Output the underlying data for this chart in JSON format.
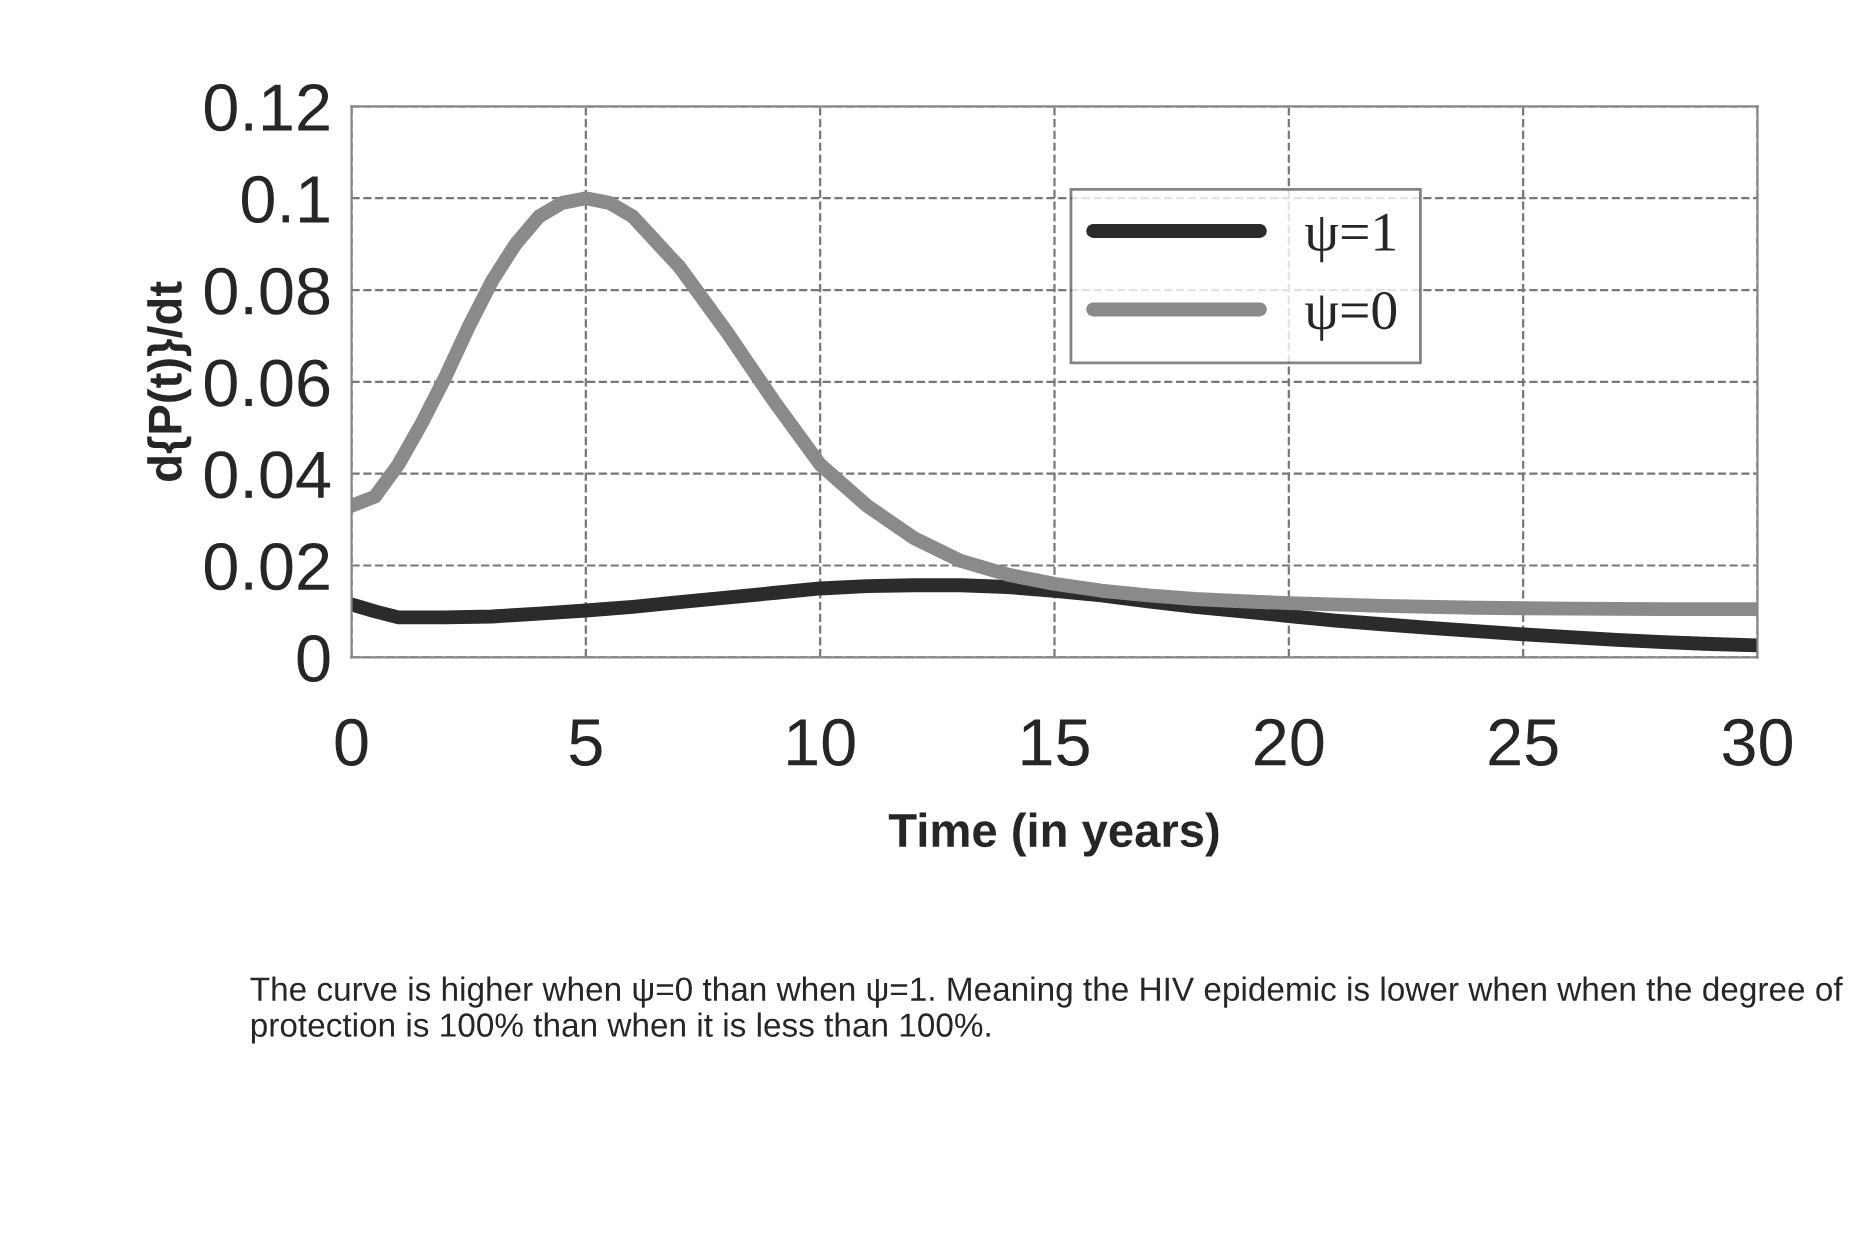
{
  "chart_data": {
    "type": "line",
    "xlabel": "Time (in years)",
    "ylabel": "d{P(t)}/dt",
    "xlim": [
      0,
      30
    ],
    "xticks": [
      0,
      5,
      10,
      15,
      20,
      25,
      30
    ],
    "ylim": [
      0,
      0.12
    ],
    "yticks": [
      0,
      0.02,
      0.04,
      0.06,
      0.08,
      0.1,
      0.12
    ],
    "grid": true,
    "legend": "top right",
    "series": [
      {
        "name": "ψ=1",
        "color": "#2b2b2b",
        "x": [
          0,
          0.5,
          1,
          2,
          3,
          4,
          5,
          6,
          7,
          8,
          9,
          10,
          11,
          12,
          13,
          14,
          15,
          16,
          17,
          18,
          19,
          20,
          21,
          22,
          23,
          24,
          25,
          26,
          27,
          28,
          29,
          30
        ],
        "values": [
          0.0115,
          0.01,
          0.0087,
          0.0087,
          0.0089,
          0.0095,
          0.0102,
          0.011,
          0.012,
          0.013,
          0.014,
          0.015,
          0.0155,
          0.0157,
          0.0157,
          0.0153,
          0.0145,
          0.0135,
          0.0122,
          0.011,
          0.01,
          0.009,
          0.008,
          0.0072,
          0.0064,
          0.0057,
          0.005,
          0.0044,
          0.0038,
          0.0033,
          0.0029,
          0.0026
        ]
      },
      {
        "name": "ψ=0",
        "color": "#8a8a8a",
        "x": [
          0,
          0.5,
          1,
          1.5,
          2,
          2.5,
          3,
          3.5,
          4,
          4.5,
          5,
          5.5,
          6,
          7,
          8,
          9,
          10,
          11,
          12,
          13,
          14,
          15,
          16,
          17,
          18,
          19,
          20,
          22,
          24,
          26,
          28,
          30
        ],
        "values": [
          0.033,
          0.035,
          0.042,
          0.051,
          0.061,
          0.072,
          0.082,
          0.09,
          0.096,
          0.099,
          0.1,
          0.099,
          0.096,
          0.085,
          0.071,
          0.056,
          0.042,
          0.033,
          0.026,
          0.021,
          0.018,
          0.016,
          0.0145,
          0.0135,
          0.0127,
          0.0122,
          0.0118,
          0.0112,
          0.0108,
          0.0106,
          0.0105,
          0.0105
        ]
      }
    ],
    "annotations": [
      "The curve is higher when ψ=0 than when ψ=1. Meaning the HIV epidemic is lower when when the degree of protection is 100% than when it is less than 100%."
    ]
  }
}
